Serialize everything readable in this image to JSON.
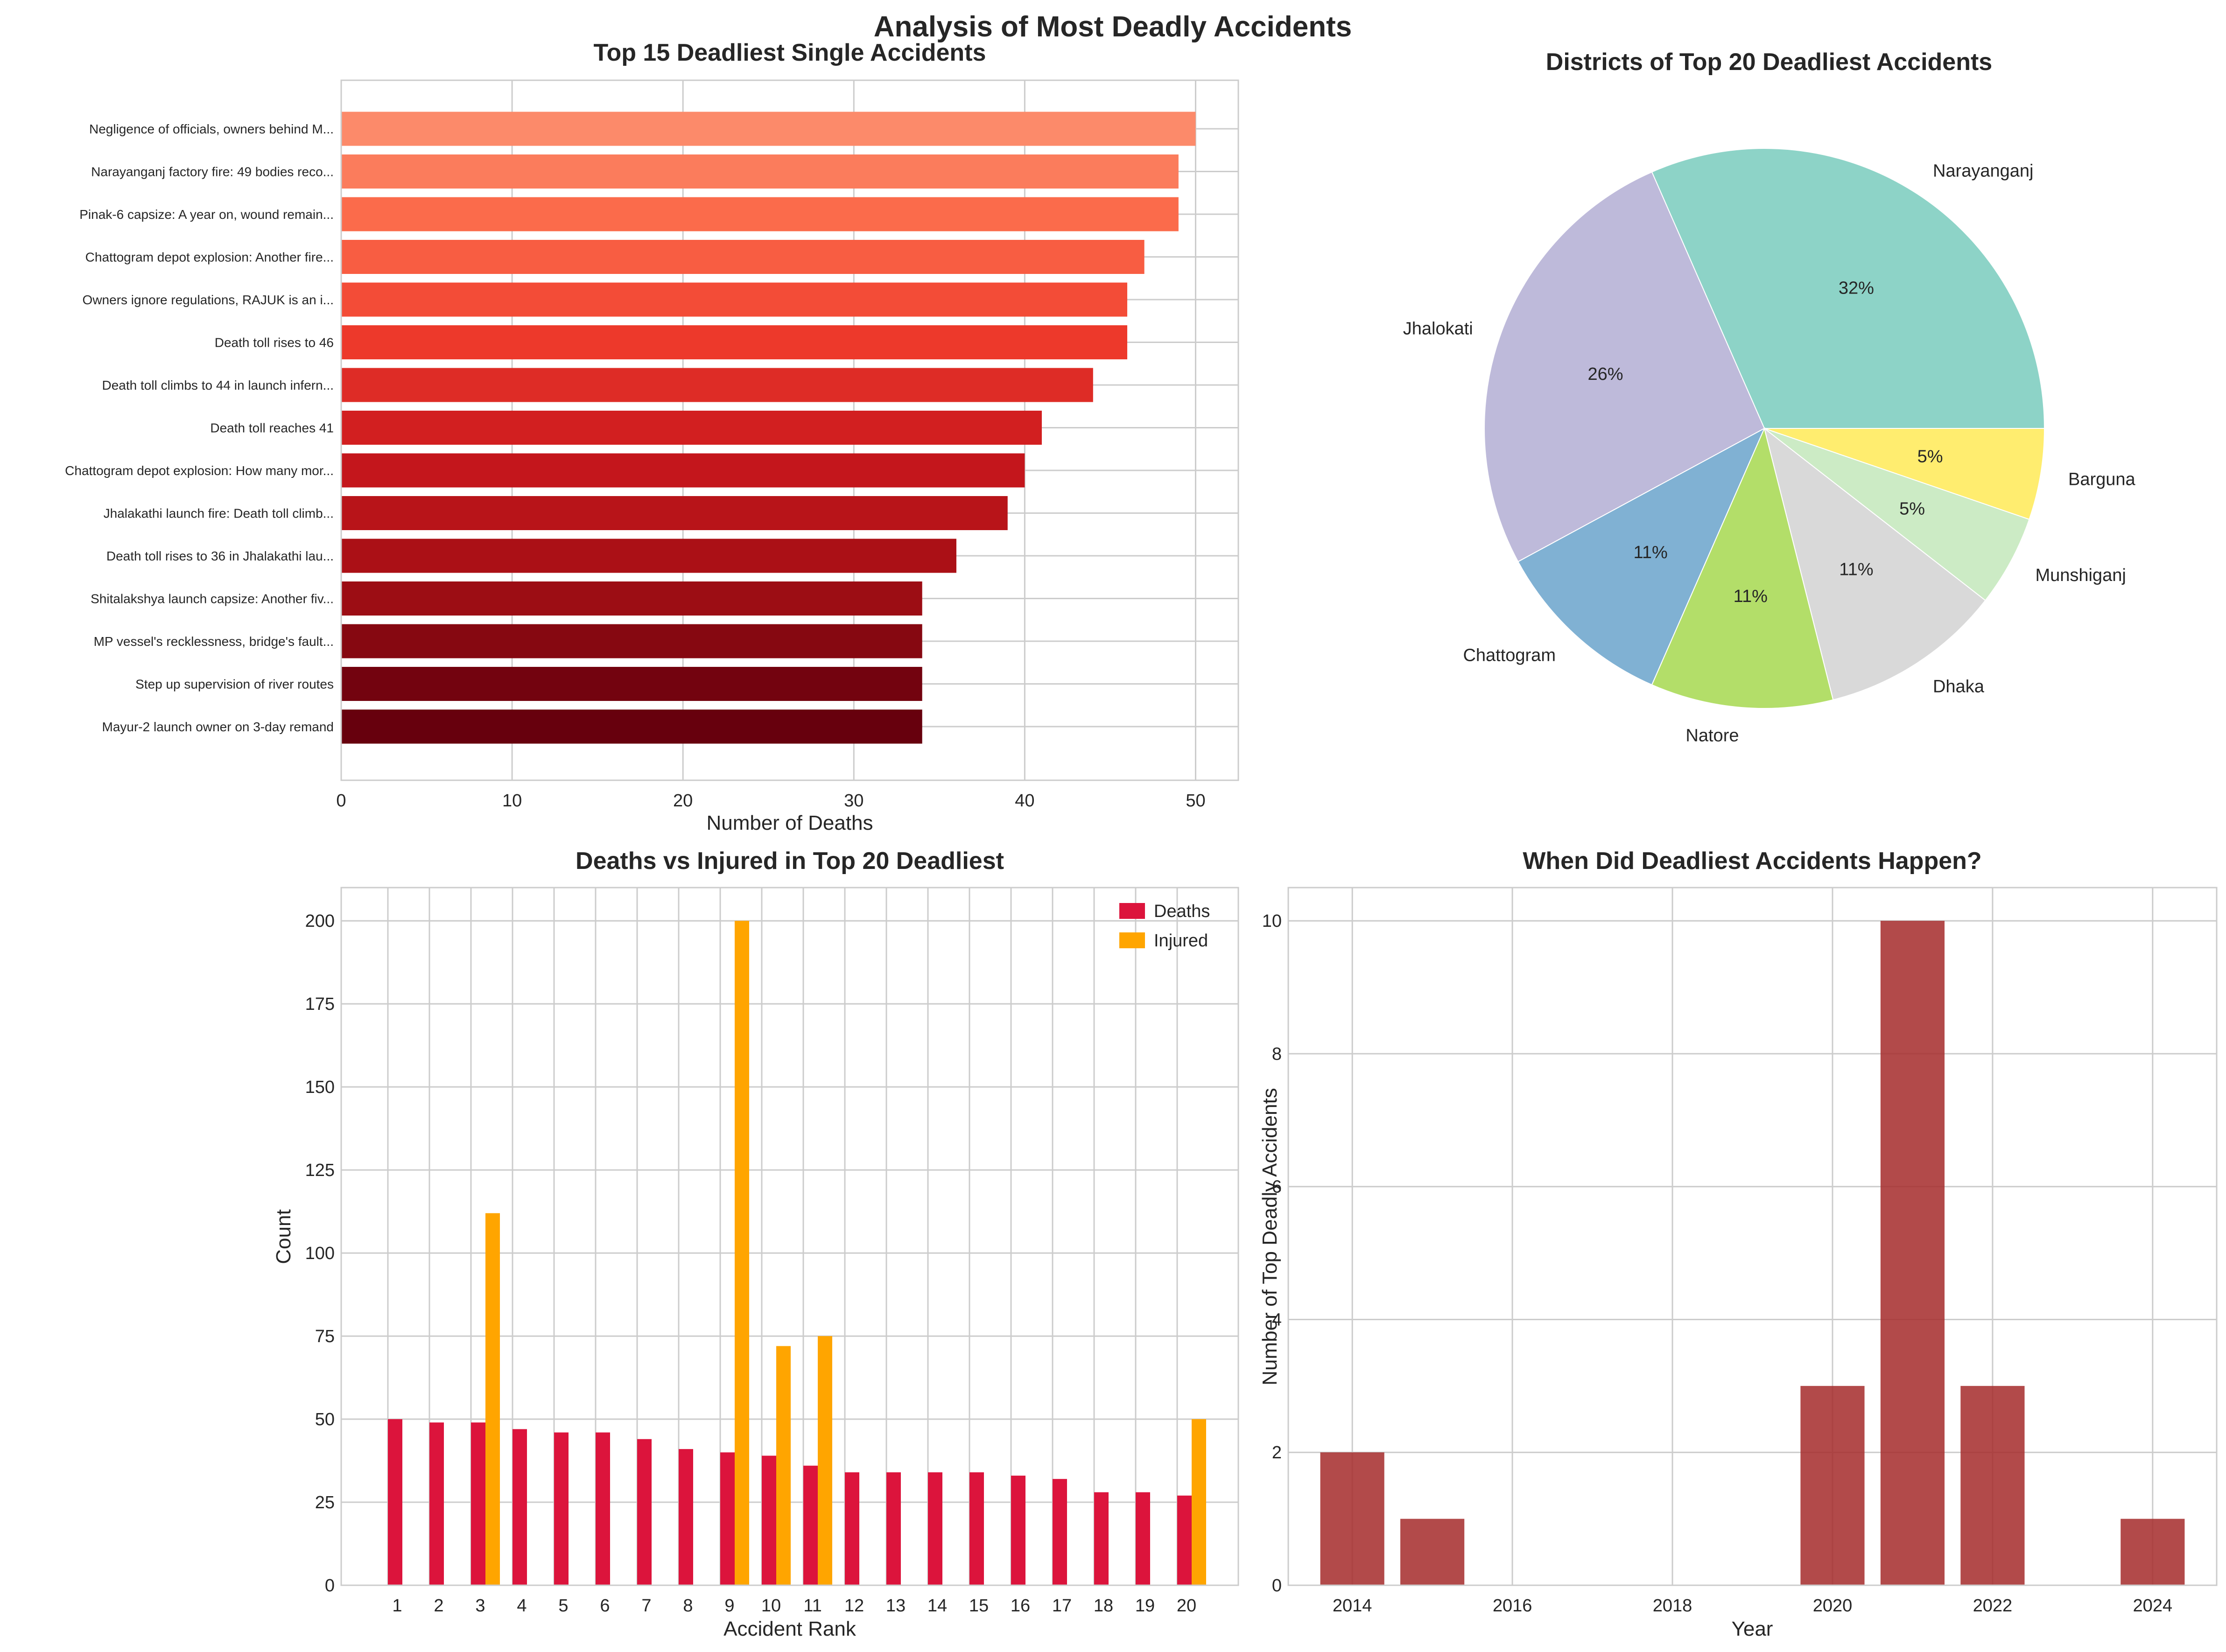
{
  "figure_title": "Analysis of Most Deadly Accidents",
  "chart_data": [
    {
      "type": "bar",
      "orientation": "horizontal",
      "title": "Top 15 Deadliest Single Accidents",
      "xlabel": "Number of Deaths",
      "ylabel": "",
      "xlim": [
        0,
        52.5
      ],
      "xticks": [
        0,
        10,
        20,
        30,
        40,
        50
      ],
      "grid": true,
      "categories": [
        "Negligence of officials, owners behind M...",
        "Narayanganj factory fire: 49 bodies reco...",
        "Pinak-6 capsize: A year on, wound remain...",
        "Chattogram depot explosion: Another fire...",
        "Owners ignore regulations, RAJUK is an i...",
        "Death toll rises to 46",
        "Death toll climbs to 44 in launch infern...",
        "Death toll reaches 41",
        "Chattogram depot explosion: How many mor...",
        "Jhalakathi launch fire: Death toll climb...",
        "Death toll rises to 36 in Jhalakathi lau...",
        "Shitalakshya launch capsize: Another fiv...",
        "MP vessel's recklessness, bridge's fault...",
        "Step up supervision of river routes",
        "Mayur-2 launch owner on 3-day remand"
      ],
      "values": [
        50,
        49,
        49,
        47,
        46,
        46,
        44,
        41,
        40,
        39,
        36,
        34,
        34,
        34,
        34
      ],
      "colors": [
        "#fc8a6a",
        "#fb7c5c",
        "#fb6b4b",
        "#f85d42",
        "#f34c37",
        "#ed392b",
        "#de2c26",
        "#d21f20",
        "#c4161c",
        "#b81419",
        "#ab1016",
        "#9c0d14",
        "#860811",
        "#73030f",
        "#67000d"
      ]
    },
    {
      "type": "pie",
      "title": "Districts of Top 20 Deadliest Accidents",
      "labels": [
        "Narayanganj",
        "Jhalokati",
        "Chattogram",
        "Natore",
        "Dhaka",
        "Munshiganj",
        "Barguna"
      ],
      "values": [
        6,
        5,
        2,
        2,
        2,
        1,
        1
      ],
      "pct_labels": [
        "32%",
        "26%",
        "11%",
        "11%",
        "11%",
        "5%",
        "5%"
      ],
      "colors": [
        "#8dd3c7",
        "#bebada",
        "#80b1d3",
        "#b3de69",
        "#d9d9d9",
        "#ccebc5",
        "#ffed6f"
      ]
    },
    {
      "type": "bar",
      "title": "Deaths vs Injured in Top 20 Deadliest",
      "xlabel": "Accident Rank",
      "ylabel": "Count",
      "ylim": [
        0,
        210
      ],
      "yticks": [
        0,
        25,
        50,
        75,
        100,
        125,
        150,
        175,
        200
      ],
      "legend_position": "top-right",
      "categories": [
        "1",
        "2",
        "3",
        "4",
        "5",
        "6",
        "7",
        "8",
        "9",
        "10",
        "11",
        "12",
        "13",
        "14",
        "15",
        "16",
        "17",
        "18",
        "19",
        "20"
      ],
      "series": [
        {
          "name": "Deaths",
          "color": "#dc143c",
          "values": [
            50,
            49,
            49,
            47,
            46,
            46,
            44,
            41,
            40,
            39,
            36,
            34,
            34,
            34,
            34,
            33,
            32,
            28,
            28,
            27
          ]
        },
        {
          "name": "Injured",
          "color": "#ffa500",
          "values": [
            0,
            0,
            112,
            0,
            0,
            0,
            0,
            0,
            200,
            72,
            75,
            0,
            0,
            0,
            0,
            0,
            0,
            0,
            0,
            50
          ]
        }
      ]
    },
    {
      "type": "bar",
      "title": "When Did Deadliest Accidents Happen?",
      "xlabel": "Year",
      "ylabel": "Number of Top Deadly Accidents",
      "xlim": [
        2013.2,
        2024.8
      ],
      "ylim": [
        0,
        10.5
      ],
      "xticks": [
        2014,
        2016,
        2018,
        2020,
        2022,
        2024
      ],
      "yticks": [
        0,
        2,
        4,
        6,
        8,
        10
      ],
      "color": "#a52a2a",
      "x": [
        2014,
        2015,
        2016,
        2017,
        2018,
        2019,
        2020,
        2021,
        2022,
        2023,
        2024
      ],
      "values": [
        2,
        1,
        0,
        0,
        0,
        0,
        3,
        10,
        3,
        0,
        1
      ]
    }
  ]
}
